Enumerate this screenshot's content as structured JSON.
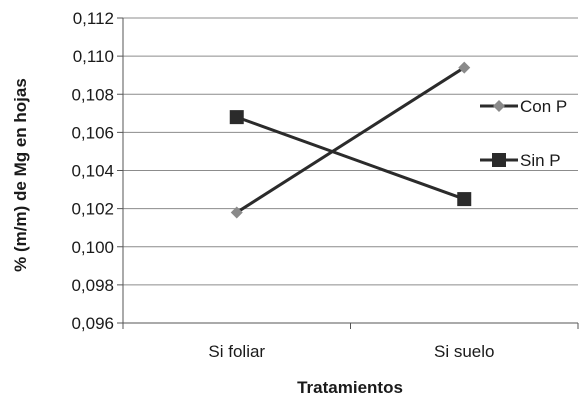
{
  "chart_data": {
    "type": "line",
    "categories": [
      "Si foliar",
      "Si suelo"
    ],
    "series": [
      {
        "name": "Con P",
        "values": [
          0.1018,
          0.1094
        ],
        "marker": "diamond",
        "color": "#8a8a8a",
        "line_color": "#2b2b2b"
      },
      {
        "name": "Sin P",
        "values": [
          0.1068,
          0.1025
        ],
        "marker": "square",
        "color": "#2b2b2b",
        "line_color": "#2b2b2b"
      }
    ],
    "xlabel": "Tratamientos",
    "ylabel": "% (m/m) de Mg en hojas",
    "ylim": [
      0.096,
      0.112
    ],
    "yticks": [
      "0,096",
      "0,098",
      "0,100",
      "0,102",
      "0,104",
      "0,106",
      "0,108",
      "0,110",
      "0,112"
    ],
    "grid": true,
    "legend_position": "right"
  }
}
